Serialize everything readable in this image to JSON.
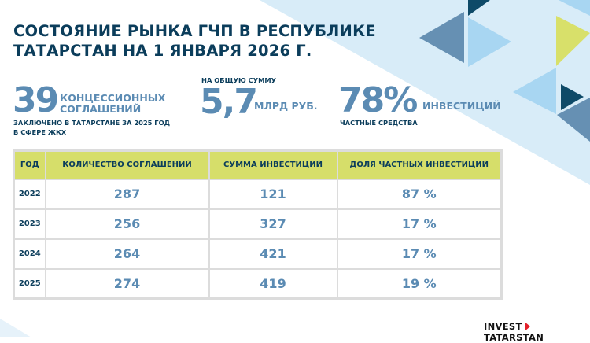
{
  "title": [
    "СОСТОЯНИЕ РЫНКА ГЧП В РЕСПУБЛИКЕ",
    "ТАТАРСТАН НА 1 ЯНВАРЯ 2026 Г."
  ],
  "stats": {
    "s1": {
      "value": "39",
      "unit_line1": "КОНЦЕССИОННЫХ",
      "unit_line2": "СОГЛАШЕНИЙ",
      "caption_line1": "ЗАКЛЮЧЕНО В ТАТАРСТАНЕ ЗА 2025 ГОД",
      "caption_line2": "В СФЕРЕ ЖКХ"
    },
    "s2": {
      "above": "НА ОБЩУЮ СУММУ",
      "value": "5,7",
      "unit": "МЛРД РУБ."
    },
    "s3": {
      "value": "78%",
      "unit": "ИНВЕСТИЦИЙ",
      "caption": "ЧАСТНЫЕ СРЕДСТВА"
    }
  },
  "table": {
    "headers": [
      "ГОД",
      "КОЛИЧЕСТВО СОГЛАШЕНИЙ",
      "СУММА ИНВЕСТИЦИЙ",
      "ДОЛЯ ЧАСТНЫХ ИНВЕСТИЦИЙ"
    ],
    "rows": [
      [
        "2022",
        "287",
        "121",
        "87 %"
      ],
      [
        "2023",
        "256",
        "327",
        "17 %"
      ],
      [
        "2024",
        "264",
        "421",
        "17 %"
      ],
      [
        "2025",
        "274",
        "419",
        "19 %"
      ]
    ]
  },
  "logo": {
    "left": "INVEST",
    "right": "TATARSTAN"
  },
  "colors": {
    "navy": "#0b3d5b",
    "steel": "#5b8bb3",
    "lime": "#d6de6a",
    "light": "#d6ebf7"
  }
}
